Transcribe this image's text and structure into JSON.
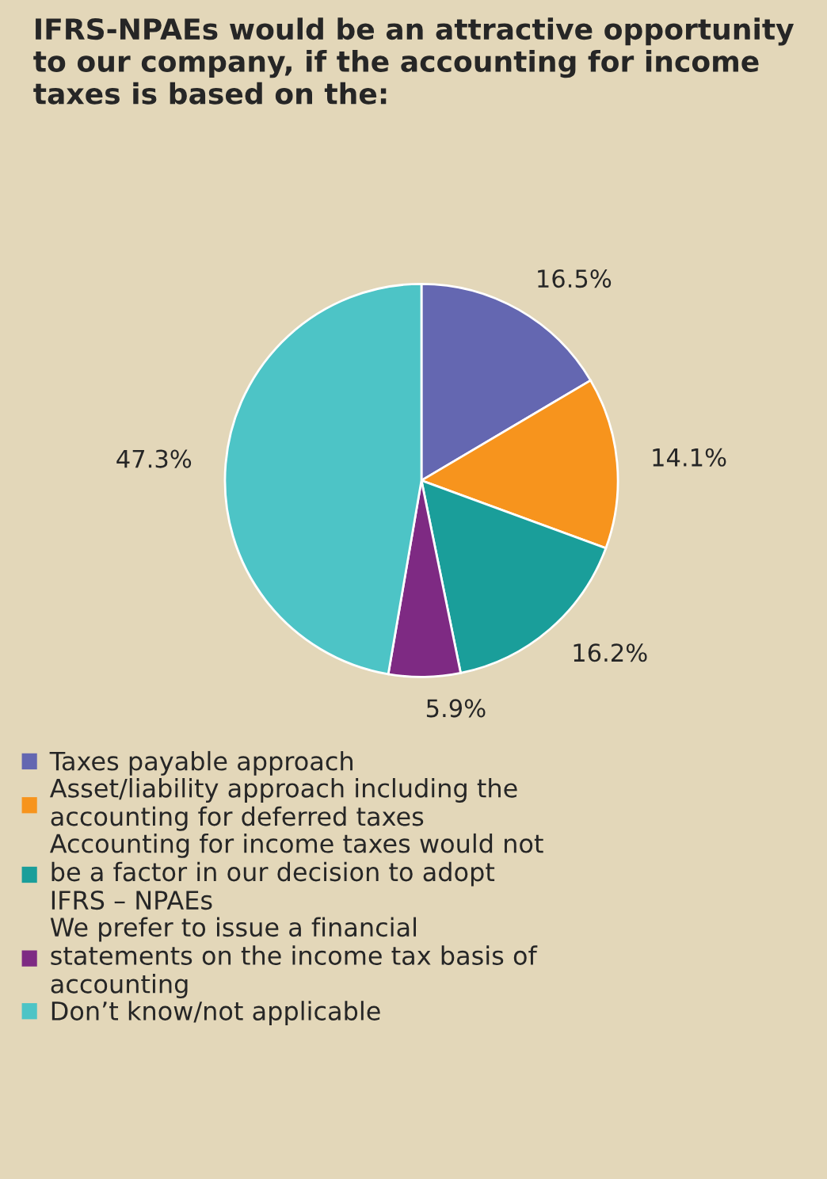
{
  "chart_data": {
    "type": "pie",
    "title": "IFRS-NPAEs would be an attractive opportunity to our company, if the accounting for income taxes is based on the:",
    "categories": [
      "Taxes payable approach",
      "Asset/liability approach including the accounting for deferred taxes",
      "Accounting for income taxes would not be a factor in our decision to adopt IFRS – NPAEs",
      "We prefer to issue a financial statements on the income tax basis of accounting",
      "Don’t know/not applicable"
    ],
    "values": [
      16.5,
      14.1,
      16.2,
      5.9,
      47.3
    ],
    "colors": [
      "#6467b1",
      "#f7941d",
      "#1a9e9a",
      "#7e2a83",
      "#4dc4c6"
    ],
    "value_labels": [
      "16.5%",
      "14.1%",
      "16.2%",
      "5.9%",
      "47.3%"
    ],
    "legend": "bottom"
  }
}
